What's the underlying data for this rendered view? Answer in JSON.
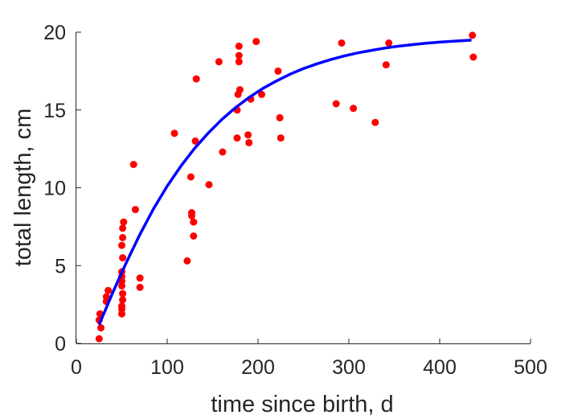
{
  "chart_data": {
    "type": "scatter",
    "xlabel": "time since birth, d",
    "ylabel": "total length, cm",
    "xlim": [
      0,
      500
    ],
    "ylim": [
      0,
      20
    ],
    "xticks": [
      "0",
      "100",
      "200",
      "300",
      "400",
      "500"
    ],
    "yticks": [
      "0",
      "5",
      "10",
      "15",
      "20"
    ],
    "grid": false,
    "series": [
      {
        "kind": "scatter",
        "color": "#ff0000",
        "points": [
          [
            25,
            0.3
          ],
          [
            25,
            1.5
          ],
          [
            26,
            1.9
          ],
          [
            27,
            1.0
          ],
          [
            33,
            2.7
          ],
          [
            33,
            3.0
          ],
          [
            35,
            3.4
          ],
          [
            50,
            1.9
          ],
          [
            50,
            2.2
          ],
          [
            50,
            2.4
          ],
          [
            51,
            2.8
          ],
          [
            51,
            3.2
          ],
          [
            50,
            3.7
          ],
          [
            50,
            4.0
          ],
          [
            50,
            4.3
          ],
          [
            50,
            4.6
          ],
          [
            51,
            5.5
          ],
          [
            50,
            6.3
          ],
          [
            51,
            6.8
          ],
          [
            51,
            7.4
          ],
          [
            52,
            7.8
          ],
          [
            63,
            11.5
          ],
          [
            65,
            8.6
          ],
          [
            70,
            4.2
          ],
          [
            70,
            3.6
          ],
          [
            108,
            13.5
          ],
          [
            122,
            5.3
          ],
          [
            126,
            10.7
          ],
          [
            127,
            8.4
          ],
          [
            127,
            8.2
          ],
          [
            129,
            7.8
          ],
          [
            129,
            6.9
          ],
          [
            131,
            13.0
          ],
          [
            132,
            17.0
          ],
          [
            146,
            10.2
          ],
          [
            157,
            18.1
          ],
          [
            161,
            12.3
          ],
          [
            177,
            15.0
          ],
          [
            177,
            13.2
          ],
          [
            178,
            16.0
          ],
          [
            179,
            18.5
          ],
          [
            179,
            18.1
          ],
          [
            179,
            19.1
          ],
          [
            180,
            16.3
          ],
          [
            189,
            13.4
          ],
          [
            190,
            12.9
          ],
          [
            192,
            15.7
          ],
          [
            198,
            19.4
          ],
          [
            204,
            16.0
          ],
          [
            222,
            17.5
          ],
          [
            224,
            14.5
          ],
          [
            225,
            13.2
          ],
          [
            286,
            15.4
          ],
          [
            292,
            19.3
          ],
          [
            305,
            15.1
          ],
          [
            329,
            14.2
          ],
          [
            341,
            17.9
          ],
          [
            344,
            19.3
          ],
          [
            436,
            19.8
          ],
          [
            437,
            18.4
          ]
        ]
      },
      {
        "kind": "line",
        "color": "#0000ff",
        "x": [
          25,
          40,
          55,
          70,
          85,
          100,
          115,
          130,
          145,
          160,
          175,
          190,
          205,
          220,
          235,
          250,
          265,
          280,
          295,
          310,
          325,
          340,
          355,
          370,
          385,
          400,
          415,
          435
        ],
        "y": [
          1.2,
          3.26,
          5.2,
          7.01,
          8.66,
          10.11,
          11.39,
          12.52,
          13.51,
          14.38,
          15.14,
          15.8,
          16.37,
          16.86,
          17.29,
          17.66,
          17.97,
          18.24,
          18.47,
          18.67,
          18.83,
          18.98,
          19.1,
          19.2,
          19.29,
          19.36,
          19.42,
          19.49
        ]
      }
    ]
  }
}
